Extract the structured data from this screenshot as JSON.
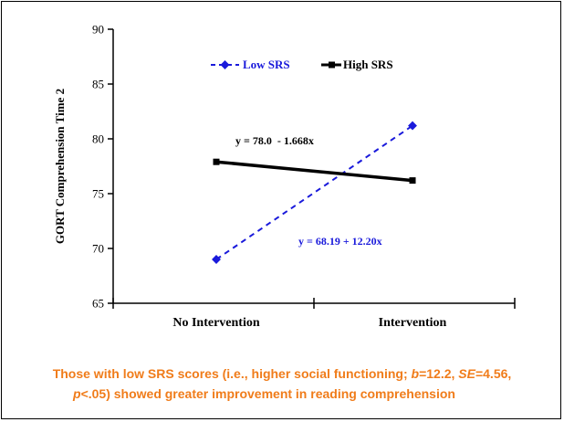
{
  "colors": {
    "low_series": "#1a1adb",
    "high_series": "#000000",
    "caption": "#f07c1a"
  },
  "chart_data": {
    "type": "line",
    "categories": [
      "No Intervention",
      "Intervention"
    ],
    "series": [
      {
        "name": "Low SRS",
        "values": [
          69.0,
          81.2
        ],
        "style": "dashed",
        "marker": "diamond"
      },
      {
        "name": "High SRS",
        "values": [
          77.9,
          76.2
        ],
        "style": "solid",
        "marker": "square"
      }
    ],
    "ylabel": "GORT Comprehension Time 2",
    "ylim": [
      65,
      90
    ],
    "yticks": [
      "65",
      "70",
      "75",
      "80",
      "85",
      "90"
    ],
    "legend_position": "top",
    "grid": false,
    "annotations": {
      "high_equation": "y = 78.0  - 1.668x",
      "low_equation": "y = 68.19 + 12.20x"
    }
  },
  "caption": {
    "line1_a": "Those with low SRS scores (i.e., higher social functioning; ",
    "b_symbol": "b",
    "line1_b": "=12.2, ",
    "se_symbol": "SE",
    "line1_c": "=4.56,",
    "p_symbol": "p",
    "line2": "<.05) showed greater improvement in reading comprehension"
  }
}
